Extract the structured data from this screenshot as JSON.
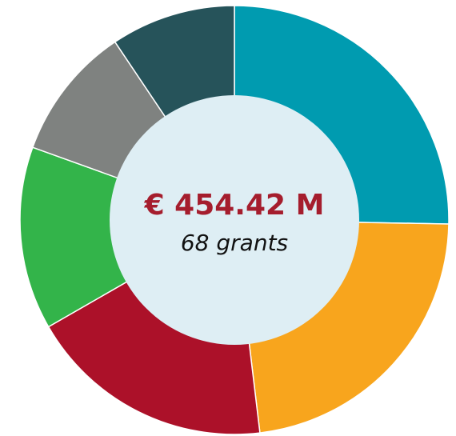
{
  "chart_data": {
    "type": "donut",
    "center_title": "€ 454.42 M",
    "center_subtitle": "68 grants",
    "values": [
      25.3,
      22.8,
      18.6,
      13.8,
      10.1,
      9.4
    ],
    "colors": [
      "#009bb0",
      "#f8a51d",
      "#ac1129",
      "#33b44a",
      "#7f8280",
      "#26535a"
    ],
    "center_color": "#deeef4"
  }
}
